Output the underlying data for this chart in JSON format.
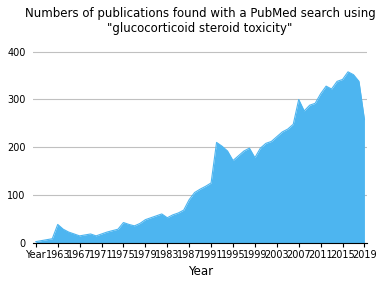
{
  "title_line1": "Numbers of publications found with a PubMed search using",
  "title_line2": "\"glucocorticoid steroid toxicity\"",
  "xlabel": "Year",
  "fill_color": "#4db5f0",
  "background_color": "#ffffff",
  "ylim": [
    0,
    430
  ],
  "yticks": [
    0,
    100,
    200,
    300,
    400
  ],
  "years": [
    1959,
    1960,
    1961,
    1962,
    1963,
    1964,
    1965,
    1966,
    1967,
    1968,
    1969,
    1970,
    1971,
    1972,
    1973,
    1974,
    1975,
    1976,
    1977,
    1978,
    1979,
    1980,
    1981,
    1982,
    1983,
    1984,
    1985,
    1986,
    1987,
    1988,
    1989,
    1990,
    1991,
    1992,
    1993,
    1994,
    1995,
    1996,
    1997,
    1998,
    1999,
    2000,
    2001,
    2002,
    2003,
    2004,
    2005,
    2006,
    2007,
    2008,
    2009,
    2010,
    2011,
    2012,
    2013,
    2014,
    2015,
    2016,
    2017,
    2018,
    2019
  ],
  "values": [
    2,
    4,
    6,
    8,
    38,
    28,
    22,
    18,
    14,
    16,
    18,
    14,
    18,
    22,
    25,
    28,
    42,
    38,
    35,
    40,
    48,
    52,
    56,
    60,
    52,
    58,
    62,
    68,
    90,
    105,
    112,
    118,
    125,
    210,
    202,
    192,
    172,
    182,
    192,
    198,
    178,
    198,
    208,
    212,
    222,
    232,
    238,
    248,
    300,
    276,
    288,
    292,
    312,
    328,
    322,
    338,
    342,
    358,
    352,
    338,
    258
  ],
  "xtick_positions": [
    1959,
    1963,
    1967,
    1971,
    1975,
    1979,
    1983,
    1987,
    1991,
    1995,
    1999,
    2003,
    2007,
    2011,
    2015,
    2019
  ],
  "xtick_labels": [
    "Year",
    "1963",
    "1967",
    "1971",
    "1975",
    "1979",
    "1983",
    "1987",
    "1991",
    "1995",
    "1999",
    "2003",
    "2007",
    "2011",
    "2015",
    "2019"
  ],
  "title_fontsize": 8.5,
  "tick_fontsize": 7,
  "xlabel_fontsize": 8.5,
  "grid_color": "#c0c0c0"
}
